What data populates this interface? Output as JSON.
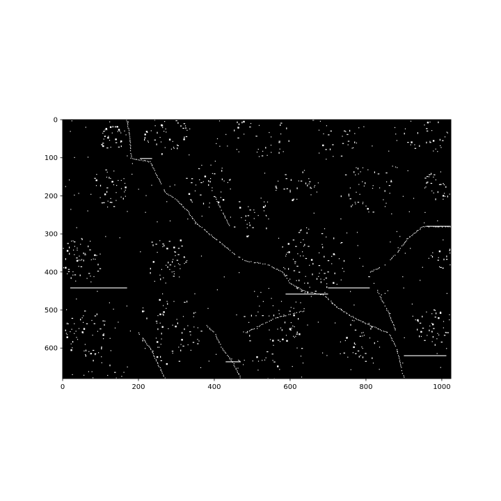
{
  "chart_data": {
    "type": "heatmap",
    "description_kind": "binary edge-detection image plotted on image axes",
    "image_shape": [
      680,
      1024
    ],
    "xlim": [
      0,
      1024
    ],
    "ylim": [
      680,
      0
    ],
    "y_inverted": true,
    "background_color": "#000000",
    "foreground_color": "#ffffff",
    "grid": false,
    "legend": "none",
    "x_ticks": [
      0,
      200,
      400,
      600,
      800,
      1000
    ],
    "x_tick_labels": [
      "0",
      "200",
      "400",
      "600",
      "800",
      "1000"
    ],
    "y_ticks": [
      0,
      100,
      200,
      300,
      400,
      500,
      600
    ],
    "y_tick_labels": [
      "0",
      "100",
      "200",
      "300",
      "400",
      "500",
      "600"
    ],
    "edge_curves": [
      {
        "id": "ridge-main",
        "points": [
          [
            168,
            0
          ],
          [
            176,
            40
          ],
          [
            180,
            100
          ],
          [
            230,
            110
          ],
          [
            270,
            190
          ],
          [
            300,
            210
          ],
          [
            330,
            240
          ],
          [
            350,
            270
          ],
          [
            400,
            310
          ],
          [
            450,
            350
          ],
          [
            480,
            370
          ],
          [
            540,
            380
          ],
          [
            580,
            400
          ],
          [
            600,
            430
          ],
          [
            640,
            450
          ],
          [
            690,
            460
          ]
        ]
      },
      {
        "id": "ridge-right",
        "points": [
          [
            690,
            460
          ],
          [
            720,
            490
          ],
          [
            760,
            515
          ],
          [
            810,
            540
          ],
          [
            860,
            560
          ],
          [
            880,
            600
          ],
          [
            900,
            680
          ]
        ]
      },
      {
        "id": "ridge-upper-right",
        "points": [
          [
            810,
            400
          ],
          [
            850,
            380
          ],
          [
            880,
            350
          ],
          [
            910,
            310
          ],
          [
            950,
            280
          ],
          [
            1024,
            280
          ]
        ]
      },
      {
        "id": "ridge-mid-left",
        "points": [
          [
            380,
            540
          ],
          [
            400,
            560
          ],
          [
            420,
            600
          ],
          [
            450,
            640
          ],
          [
            470,
            680
          ]
        ]
      },
      {
        "id": "ridge-lower-left",
        "points": [
          [
            200,
            560
          ],
          [
            230,
            600
          ],
          [
            250,
            640
          ],
          [
            270,
            680
          ]
        ]
      },
      {
        "id": "ridge-right-drop",
        "points": [
          [
            820,
            430
          ],
          [
            840,
            470
          ],
          [
            860,
            510
          ],
          [
            880,
            560
          ]
        ]
      },
      {
        "id": "ridge-center-low",
        "points": [
          [
            480,
            560
          ],
          [
            520,
            540
          ],
          [
            560,
            520
          ],
          [
            600,
            510
          ],
          [
            640,
            500
          ]
        ]
      },
      {
        "id": "ridge-top-mid",
        "points": [
          [
            400,
            200
          ],
          [
            420,
            240
          ],
          [
            440,
            280
          ]
        ]
      }
    ],
    "horizontal_segments": [
      {
        "y": 102,
        "x0": 204,
        "x1": 236
      },
      {
        "y": 442,
        "x0": 20,
        "x1": 170
      },
      {
        "y": 458,
        "x0": 588,
        "x1": 700
      },
      {
        "y": 442,
        "x0": 700,
        "x1": 810
      },
      {
        "y": 620,
        "x0": 900,
        "x1": 1012
      },
      {
        "y": 280,
        "x0": 960,
        "x1": 1024
      },
      {
        "y": 636,
        "x0": 430,
        "x1": 470
      }
    ],
    "speckle_clusters": [
      {
        "cx": 130,
        "cy": 40,
        "r": 40,
        "n": 35
      },
      {
        "cx": 270,
        "cy": 30,
        "r": 60,
        "n": 45
      },
      {
        "cx": 520,
        "cy": 30,
        "r": 80,
        "n": 40
      },
      {
        "cx": 720,
        "cy": 30,
        "r": 70,
        "n": 35
      },
      {
        "cx": 960,
        "cy": 40,
        "r": 60,
        "n": 30
      },
      {
        "cx": 120,
        "cy": 180,
        "r": 50,
        "n": 40
      },
      {
        "cx": 380,
        "cy": 170,
        "r": 60,
        "n": 35
      },
      {
        "cx": 620,
        "cy": 180,
        "r": 60,
        "n": 30
      },
      {
        "cx": 800,
        "cy": 180,
        "r": 70,
        "n": 40
      },
      {
        "cx": 990,
        "cy": 170,
        "r": 40,
        "n": 30
      },
      {
        "cx": 50,
        "cy": 370,
        "r": 60,
        "n": 55
      },
      {
        "cx": 270,
        "cy": 360,
        "r": 60,
        "n": 40
      },
      {
        "cx": 660,
        "cy": 370,
        "r": 90,
        "n": 80
      },
      {
        "cx": 1000,
        "cy": 360,
        "r": 30,
        "n": 15
      },
      {
        "cx": 60,
        "cy": 560,
        "r": 60,
        "n": 45
      },
      {
        "cx": 280,
        "cy": 550,
        "r": 90,
        "n": 60
      },
      {
        "cx": 550,
        "cy": 560,
        "r": 90,
        "n": 55
      },
      {
        "cx": 780,
        "cy": 580,
        "r": 60,
        "n": 35
      },
      {
        "cx": 980,
        "cy": 540,
        "r": 50,
        "n": 40
      },
      {
        "cx": 120,
        "cy": 660,
        "r": 60,
        "n": 20
      },
      {
        "cx": 500,
        "cy": 260,
        "r": 60,
        "n": 25
      }
    ]
  }
}
